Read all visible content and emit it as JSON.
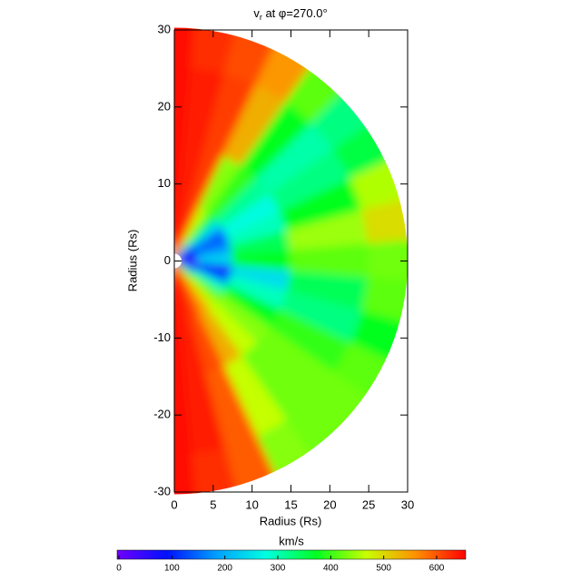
{
  "chart_data": {
    "type": "polar_heatmap",
    "title": {
      "text": "v",
      "subscript": "r",
      "rest": " at φ=270.0°"
    },
    "xlabel": "Radius (Rs)",
    "ylabel": "Radius (Rs)",
    "xlim": [
      0,
      30
    ],
    "ylim": [
      -30,
      30
    ],
    "xticks": [
      0,
      5,
      10,
      15,
      20,
      25,
      30
    ],
    "yticks": [
      -30,
      -20,
      -10,
      0,
      10,
      20,
      30
    ],
    "latitudes": [
      90,
      80,
      70,
      60,
      50,
      40,
      30,
      20,
      10,
      0,
      -10,
      -20,
      -30,
      -40,
      -50,
      -60,
      -70,
      -80,
      -90
    ],
    "radii": [
      1,
      5,
      10,
      20,
      30
    ],
    "values": [
      [
        650,
        650,
        650,
        650,
        650
      ],
      [
        640,
        640,
        640,
        640,
        630
      ],
      [
        620,
        620,
        620,
        620,
        610
      ],
      [
        500,
        470,
        440,
        540,
        560
      ],
      [
        300,
        380,
        400,
        380,
        420
      ],
      [
        150,
        250,
        320,
        310,
        330
      ],
      [
        80,
        150,
        280,
        330,
        360
      ],
      [
        80,
        150,
        300,
        380,
        460
      ],
      [
        100,
        200,
        350,
        450,
        500
      ],
      [
        50,
        250,
        380,
        420,
        430
      ],
      [
        40,
        80,
        250,
        350,
        420
      ],
      [
        60,
        150,
        300,
        330,
        380
      ],
      [
        200,
        300,
        380,
        400,
        420
      ],
      [
        350,
        420,
        440,
        430,
        430
      ],
      [
        450,
        480,
        470,
        430,
        430
      ],
      [
        550,
        560,
        540,
        470,
        440
      ],
      [
        620,
        620,
        610,
        600,
        600
      ],
      [
        640,
        640,
        640,
        640,
        630
      ],
      [
        650,
        650,
        650,
        650,
        650
      ]
    ],
    "colorbar": {
      "label": "km/s",
      "clim": [
        0,
        660
      ],
      "ticks": [
        0,
        100,
        200,
        300,
        400,
        500,
        600
      ],
      "colormap": [
        "#7000ff",
        "#0010ff",
        "#00a0ff",
        "#00ffe0",
        "#00ff20",
        "#c8ff00",
        "#ff9000",
        "#ff0000"
      ]
    }
  }
}
